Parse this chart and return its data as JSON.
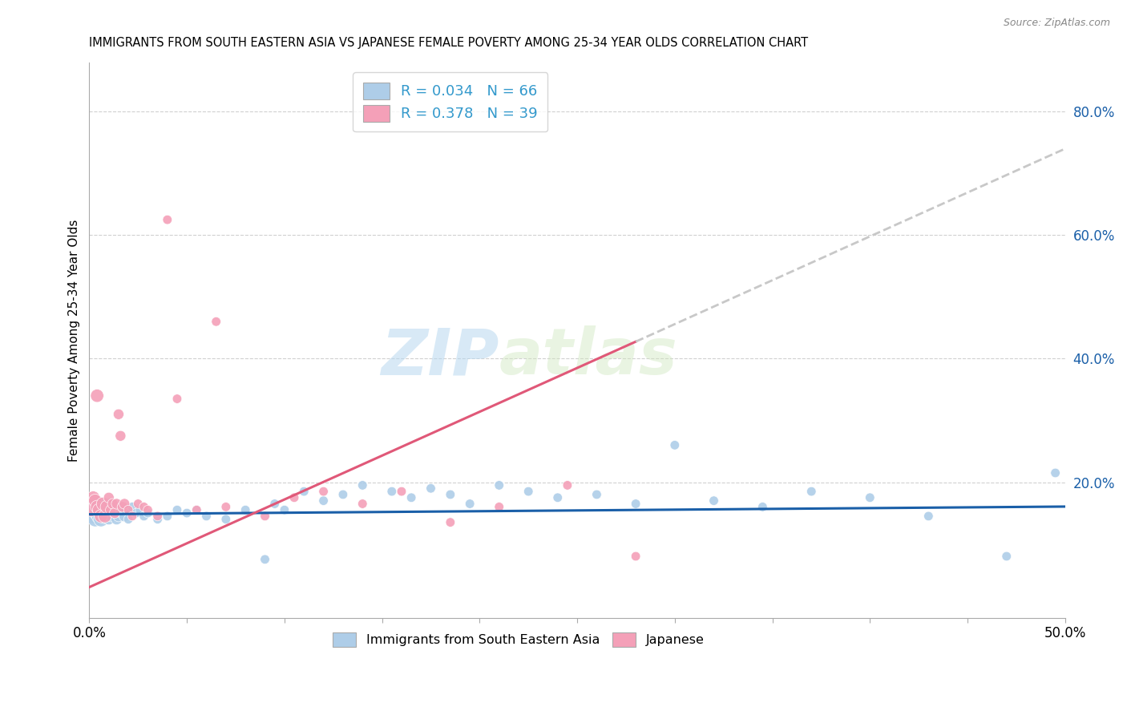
{
  "title": "IMMIGRANTS FROM SOUTH EASTERN ASIA VS JAPANESE FEMALE POVERTY AMONG 25-34 YEAR OLDS CORRELATION CHART",
  "source": "Source: ZipAtlas.com",
  "ylabel": "Female Poverty Among 25-34 Year Olds",
  "xlim": [
    0.0,
    0.5
  ],
  "ylim": [
    -0.02,
    0.88
  ],
  "right_yticks": [
    0.2,
    0.4,
    0.6,
    0.8
  ],
  "color_blue": "#aecde8",
  "color_pink": "#f4a0b8",
  "color_blue_line": "#1a5fa8",
  "color_pink_line": "#e05878",
  "color_dashed": "#c8c8c8",
  "watermark_zip": "ZIP",
  "watermark_atlas": "atlas",
  "blue_x": [
    0.001,
    0.002,
    0.002,
    0.003,
    0.003,
    0.004,
    0.004,
    0.005,
    0.005,
    0.006,
    0.006,
    0.007,
    0.007,
    0.008,
    0.008,
    0.009,
    0.01,
    0.01,
    0.011,
    0.012,
    0.013,
    0.014,
    0.015,
    0.016,
    0.017,
    0.018,
    0.019,
    0.02,
    0.022,
    0.024,
    0.026,
    0.028,
    0.03,
    0.035,
    0.04,
    0.045,
    0.05,
    0.055,
    0.06,
    0.07,
    0.08,
    0.09,
    0.095,
    0.1,
    0.11,
    0.12,
    0.13,
    0.14,
    0.155,
    0.165,
    0.175,
    0.185,
    0.195,
    0.21,
    0.225,
    0.24,
    0.26,
    0.28,
    0.3,
    0.32,
    0.345,
    0.37,
    0.4,
    0.43,
    0.47,
    0.495
  ],
  "blue_y": [
    0.155,
    0.145,
    0.16,
    0.14,
    0.155,
    0.15,
    0.165,
    0.145,
    0.16,
    0.14,
    0.155,
    0.15,
    0.16,
    0.145,
    0.155,
    0.15,
    0.14,
    0.165,
    0.145,
    0.155,
    0.15,
    0.14,
    0.145,
    0.155,
    0.15,
    0.145,
    0.155,
    0.14,
    0.16,
    0.15,
    0.155,
    0.145,
    0.15,
    0.14,
    0.145,
    0.155,
    0.15,
    0.155,
    0.145,
    0.14,
    0.155,
    0.075,
    0.165,
    0.155,
    0.185,
    0.17,
    0.18,
    0.195,
    0.185,
    0.175,
    0.19,
    0.18,
    0.165,
    0.195,
    0.185,
    0.175,
    0.18,
    0.165,
    0.26,
    0.17,
    0.16,
    0.185,
    0.175,
    0.145,
    0.08,
    0.215
  ],
  "pink_x": [
    0.001,
    0.002,
    0.003,
    0.004,
    0.004,
    0.005,
    0.006,
    0.007,
    0.008,
    0.009,
    0.01,
    0.011,
    0.012,
    0.013,
    0.014,
    0.015,
    0.016,
    0.017,
    0.018,
    0.02,
    0.022,
    0.025,
    0.028,
    0.03,
    0.035,
    0.04,
    0.045,
    0.055,
    0.065,
    0.07,
    0.09,
    0.105,
    0.12,
    0.14,
    0.16,
    0.185,
    0.21,
    0.245,
    0.28
  ],
  "pink_y": [
    0.155,
    0.175,
    0.17,
    0.16,
    0.34,
    0.155,
    0.145,
    0.165,
    0.145,
    0.16,
    0.175,
    0.155,
    0.165,
    0.15,
    0.165,
    0.31,
    0.275,
    0.16,
    0.165,
    0.155,
    0.145,
    0.165,
    0.16,
    0.155,
    0.145,
    0.625,
    0.335,
    0.155,
    0.46,
    0.16,
    0.145,
    0.175,
    0.185,
    0.165,
    0.185,
    0.135,
    0.16,
    0.195,
    0.08
  ],
  "pink_intercept": 0.03,
  "pink_slope": 1.42,
  "blue_intercept": 0.148,
  "blue_slope": 0.025
}
